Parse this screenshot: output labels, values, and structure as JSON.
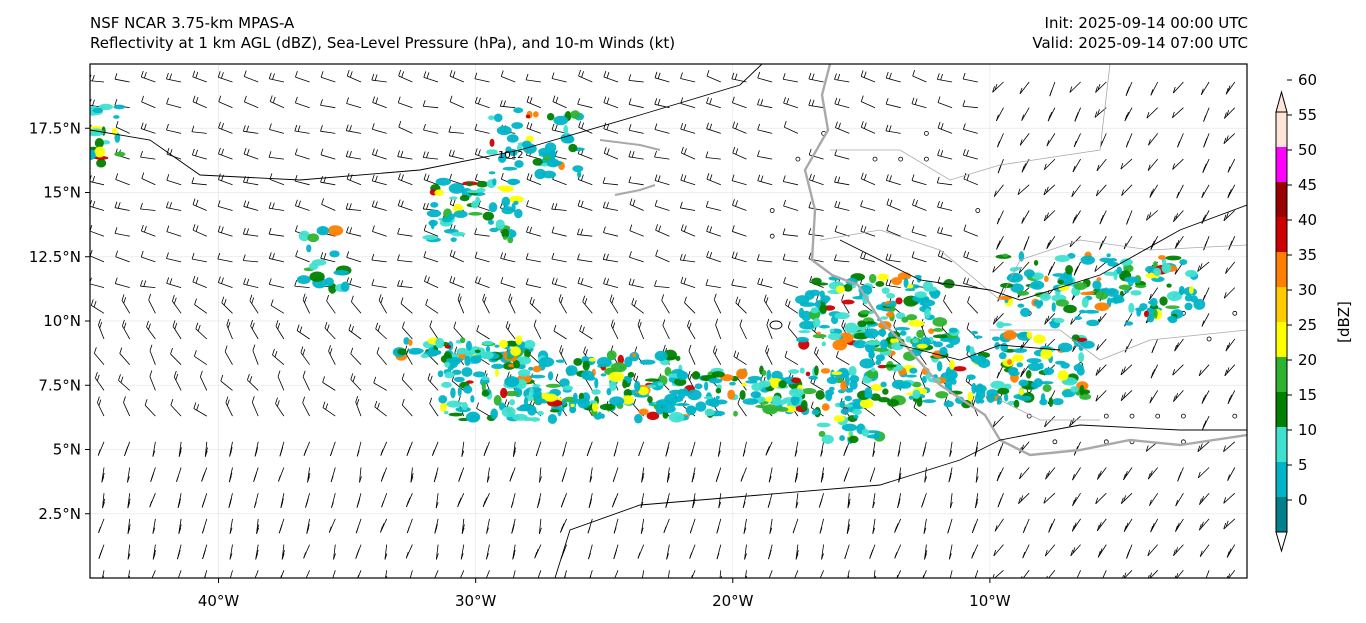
{
  "header": {
    "title_line1": "NSF NCAR 3.75-km MPAS-A",
    "title_line2": "Reflectivity at 1 km AGL (dBZ), Sea-Level Pressure (hPa), and 10-m Winds (kt)",
    "init_label": "Init: 2025-09-14 00:00 UTC",
    "valid_label": "Valid: 2025-09-14 07:00 UTC"
  },
  "map": {
    "lon_range": [
      -45,
      0
    ],
    "lat_range": [
      0,
      20
    ],
    "lon_ticks": [
      {
        "value": -40,
        "label": "40°W"
      },
      {
        "value": -30,
        "label": "30°W"
      },
      {
        "value": -20,
        "label": "20°W"
      },
      {
        "value": -10,
        "label": "10°W"
      }
    ],
    "lat_ticks": [
      {
        "value": 2.5,
        "label": "2.5°N"
      },
      {
        "value": 5,
        "label": "5°N"
      },
      {
        "value": 7.5,
        "label": "7.5°N"
      },
      {
        "value": 10,
        "label": "10°N"
      },
      {
        "value": 12.5,
        "label": "12.5°N"
      },
      {
        "value": 15,
        "label": "15°N"
      },
      {
        "value": 17.5,
        "label": "17.5°N"
      }
    ],
    "isobar_label": "1012",
    "coastline_color": "#a9a9a9",
    "isobar_color": "#000000",
    "wind_color": "#000000"
  },
  "colorbar": {
    "unit_label": "[dBZ]",
    "ticks": [
      "0",
      "5",
      "10",
      "15",
      "20",
      "25",
      "30",
      "35",
      "40",
      "45",
      "50",
      "55",
      "60"
    ],
    "colors": [
      "#ffffff",
      "#00808a",
      "#00b4c8",
      "#40e0d0",
      "#008000",
      "#2db32d",
      "#ffff00",
      "#ffcc00",
      "#ff8000",
      "#cc0000",
      "#990000",
      "#ff00ff",
      "#ffe4d8"
    ]
  }
}
